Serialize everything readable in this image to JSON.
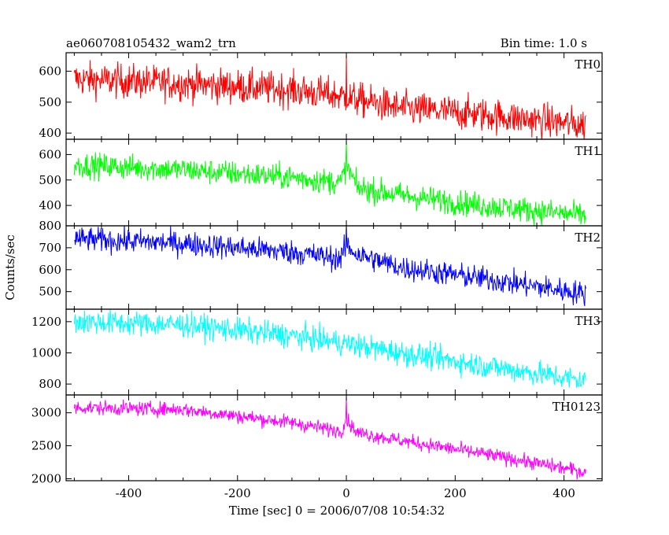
{
  "header": {
    "title": "ae060708105432_wam2_trn",
    "bin_time": "Bin time: 1.0 s"
  },
  "chart_data": {
    "type": "line",
    "xlabel": "Time [sec] 0 = 2006/07/08 10:54:32",
    "ylabel": "Counts/sec",
    "xlim": [
      -515,
      470
    ],
    "x_ticks": [
      -400,
      -200,
      0,
      200,
      400
    ],
    "x_range": [
      -500,
      440
    ],
    "grid": false,
    "panels": [
      {
        "name": "TH0",
        "color": "#ff0000",
        "ylim": [
          380,
          660
        ],
        "y_ticks": [
          400,
          500,
          600
        ],
        "trend": [
          [
            -500,
            575
          ],
          [
            -300,
            560
          ],
          [
            -100,
            540
          ],
          [
            -10,
            520
          ],
          [
            0,
            515
          ],
          [
            100,
            480
          ],
          [
            250,
            460
          ],
          [
            440,
            425
          ]
        ],
        "noise": 28,
        "spike": {
          "x": 0,
          "peak": 650
        }
      },
      {
        "name": "TH1",
        "color": "#00ff00",
        "ylim": [
          320,
          660
        ],
        "y_ticks": [
          400,
          500,
          600
        ],
        "trend": [
          [
            -500,
            560
          ],
          [
            -300,
            540
          ],
          [
            -100,
            510
          ],
          [
            -10,
            490
          ],
          [
            0,
            560
          ],
          [
            20,
            470
          ],
          [
            100,
            440
          ],
          [
            250,
            400
          ],
          [
            440,
            360
          ]
        ],
        "noise": 25,
        "spike": {
          "x": 0,
          "peak": 650
        }
      },
      {
        "name": "TH2",
        "color": "#0000ff",
        "ylim": [
          420,
          800
        ],
        "y_ticks": [
          500,
          600,
          700,
          800
        ],
        "trend": [
          [
            -500,
            740
          ],
          [
            -300,
            720
          ],
          [
            -100,
            680
          ],
          [
            -10,
            650
          ],
          [
            0,
            710
          ],
          [
            20,
            670
          ],
          [
            100,
            610
          ],
          [
            250,
            560
          ],
          [
            440,
            490
          ]
        ],
        "noise": 28,
        "spike": {
          "x": 0,
          "peak": 800
        }
      },
      {
        "name": "TH3",
        "color": "#00ffff",
        "ylim": [
          730,
          1280
        ],
        "y_ticks": [
          800,
          1000,
          1200
        ],
        "trend": [
          [
            -500,
            1200
          ],
          [
            -300,
            1180
          ],
          [
            -100,
            1110
          ],
          [
            0,
            1060
          ],
          [
            100,
            1000
          ],
          [
            250,
            920
          ],
          [
            440,
            820
          ]
        ],
        "noise": 40
      },
      {
        "name": "TH0123",
        "color": "#ff00ff",
        "ylim": [
          1970,
          3270
        ],
        "y_ticks": [
          2000,
          2500,
          3000
        ],
        "trend": [
          [
            -500,
            3080
          ],
          [
            -300,
            3050
          ],
          [
            -100,
            2850
          ],
          [
            -10,
            2720
          ],
          [
            0,
            2900
          ],
          [
            20,
            2700
          ],
          [
            100,
            2580
          ],
          [
            250,
            2380
          ],
          [
            440,
            2100
          ]
        ],
        "noise": 55,
        "spike": {
          "x": 0,
          "peak": 3240
        }
      }
    ]
  }
}
